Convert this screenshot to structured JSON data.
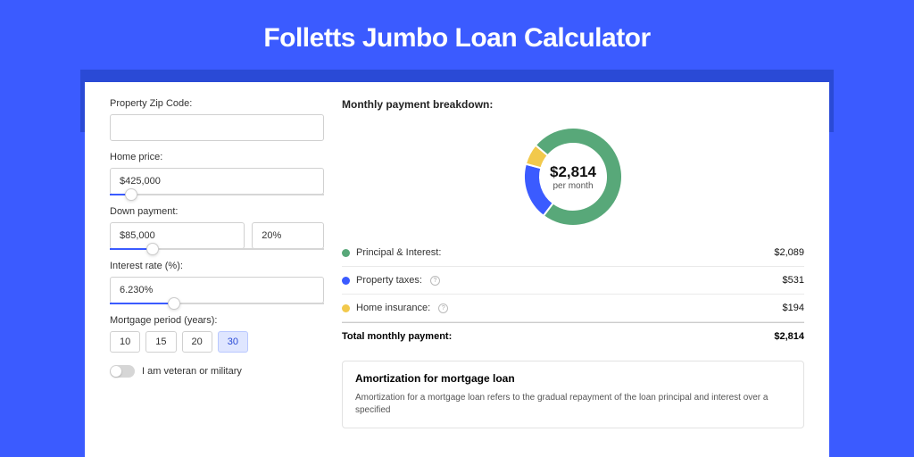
{
  "page": {
    "title": "Folletts Jumbo Loan Calculator",
    "bg_color": "#3b5bff",
    "header_bar_color": "#2a4ad6",
    "panel_bg": "#ffffff"
  },
  "form": {
    "zip": {
      "label": "Property Zip Code:",
      "value": ""
    },
    "home_price": {
      "label": "Home price:",
      "value": "$425,000",
      "slider_pct": 10
    },
    "down_payment": {
      "label": "Down payment:",
      "amount": "$85,000",
      "percent": "20%",
      "slider_pct": 20
    },
    "interest": {
      "label": "Interest rate (%):",
      "value": "6.230%",
      "slider_pct": 30
    },
    "period": {
      "label": "Mortgage period (years):",
      "options": [
        "10",
        "15",
        "20",
        "30"
      ],
      "active": "30"
    },
    "veteran": {
      "label": "I am veteran or military",
      "on": false
    }
  },
  "breakdown": {
    "title": "Monthly payment breakdown:",
    "donut": {
      "amount": "$2,814",
      "sub": "per month",
      "thickness": 18,
      "segments": [
        {
          "color": "#58a879",
          "pct": 74.2
        },
        {
          "color": "#3b5bff",
          "pct": 18.9
        },
        {
          "color": "#f2c94c",
          "pct": 6.9
        }
      ]
    },
    "rows": [
      {
        "swatch": "#58a879",
        "label": "Principal & Interest:",
        "info": false,
        "value": "$2,089"
      },
      {
        "swatch": "#3b5bff",
        "label": "Property taxes:",
        "info": true,
        "value": "$531"
      },
      {
        "swatch": "#f2c94c",
        "label": "Home insurance:",
        "info": true,
        "value": "$194"
      }
    ],
    "total": {
      "label": "Total monthly payment:",
      "value": "$2,814"
    }
  },
  "amortization": {
    "title": "Amortization for mortgage loan",
    "text": "Amortization for a mortgage loan refers to the gradual repayment of the loan principal and interest over a specified"
  }
}
